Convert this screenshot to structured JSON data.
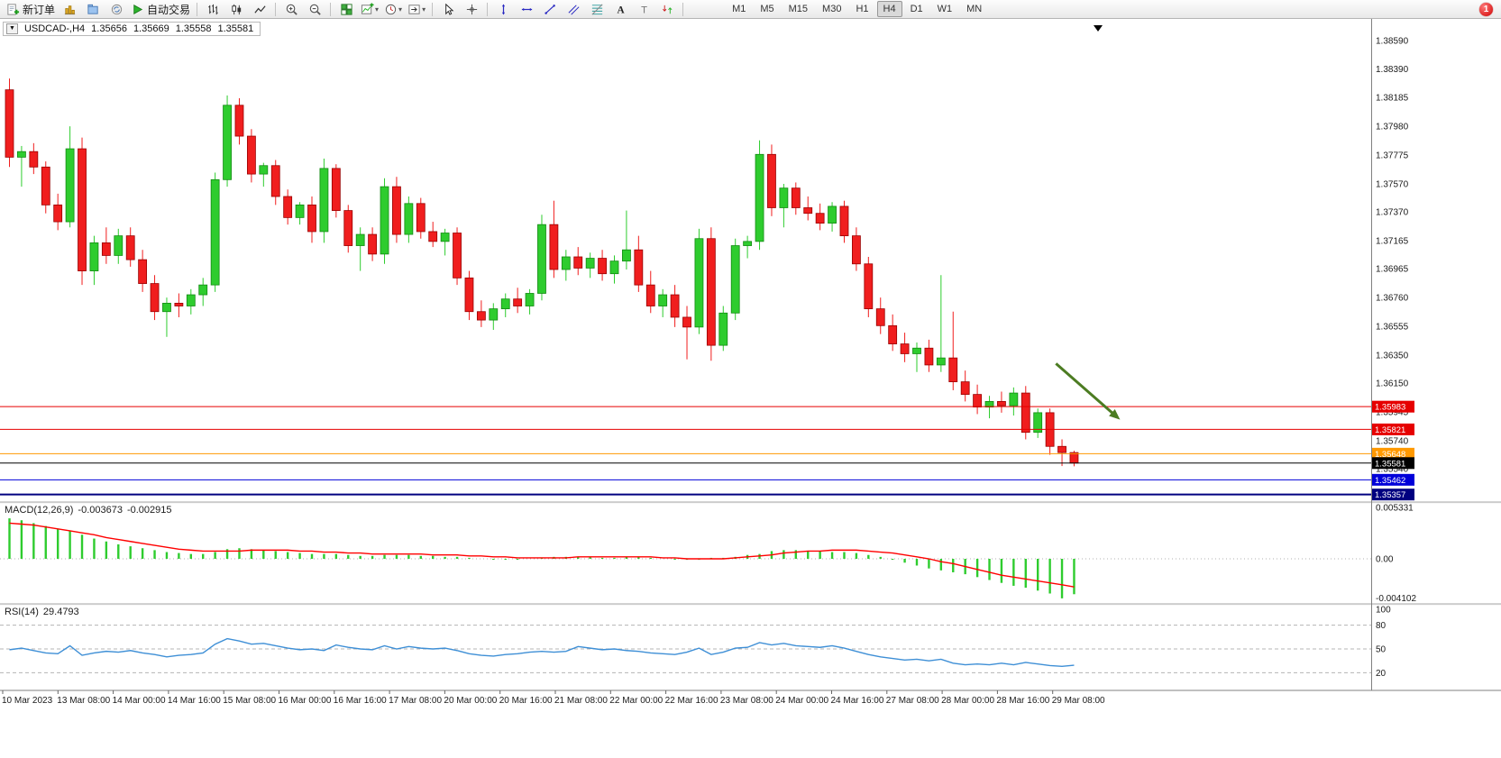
{
  "toolbar": {
    "buttons": [
      {
        "name": "new-order",
        "icon": "new-order",
        "label": "新订单"
      },
      {
        "name": "new-chart",
        "icon": "new-chart"
      },
      {
        "name": "profiles",
        "icon": "profiles"
      },
      {
        "name": "refresh",
        "icon": "terminal"
      },
      {
        "name": "auto-trading",
        "icon": "autotrade-play",
        "label": "自动交易"
      },
      {
        "sep": true
      },
      {
        "name": "bar-chart-mode",
        "icon": "bars-chart"
      },
      {
        "name": "candlestick-mode",
        "icon": "candles-chart"
      },
      {
        "name": "line-chart-mode",
        "icon": "line-chart"
      },
      {
        "sep": true
      },
      {
        "name": "zoom-in",
        "icon": "zoom-in"
      },
      {
        "name": "zoom-out",
        "icon": "zoom-out"
      },
      {
        "sep": true
      },
      {
        "name": "tile-windows",
        "icon": "tile-windows"
      },
      {
        "name": "indicators",
        "icon": "indicator-list",
        "caret": true
      },
      {
        "name": "periods",
        "icon": "clock",
        "caret": true
      },
      {
        "name": "templates",
        "icon": "chart-shift",
        "caret": true
      },
      {
        "sep": true
      },
      {
        "name": "cursor",
        "icon": "cursor"
      },
      {
        "name": "crosshair",
        "icon": "crosshair"
      },
      {
        "sep": true
      },
      {
        "name": "vertical-line",
        "icon": "vline"
      },
      {
        "name": "horizontal-line",
        "icon": "hline"
      },
      {
        "name": "trendline",
        "icon": "trendline"
      },
      {
        "name": "equidistant-channel",
        "icon": "channel"
      },
      {
        "name": "fibonacci",
        "icon": "fibonacci"
      },
      {
        "name": "text",
        "icon": "text"
      },
      {
        "name": "text-label",
        "icon": "text-label"
      },
      {
        "name": "arrows",
        "icon": "arrows"
      },
      {
        "sep": true
      }
    ],
    "timeframes": [
      "M1",
      "M5",
      "M15",
      "M30",
      "H1",
      "H4",
      "D1",
      "W1",
      "MN"
    ],
    "active_timeframe": "H4",
    "notification": "1"
  },
  "chart_header": {
    "collapse_icon": "▼",
    "symbol_period": "USDCAD-,H4",
    "open": "1.35656",
    "high": "1.35669",
    "low": "1.35558",
    "close": "1.35581"
  },
  "chart_data": {
    "type": "candlestick",
    "symbol": "USDCAD-",
    "timeframe": "H4",
    "grid": false,
    "price_range": [
      1.3531,
      1.387
    ],
    "up_color": "#2ecc2e",
    "up_border": "#128a12",
    "down_color": "#f01e1e",
    "down_border": "#990000",
    "price_ticks": [
      "1.38590",
      "1.38390",
      "1.38185",
      "1.37980",
      "1.37775",
      "1.37570",
      "1.37370",
      "1.37165",
      "1.36965",
      "1.36760",
      "1.36555",
      "1.36350",
      "1.36150",
      "1.35945",
      "1.35740",
      "1.35540"
    ],
    "time_labels": [
      "10 Mar 2023",
      "13 Mar 08:00",
      "14 Mar 00:00",
      "14 Mar 16:00",
      "15 Mar 08:00",
      "16 Mar 00:00",
      "16 Mar 16:00",
      "17 Mar 08:00",
      "20 Mar 00:00",
      "20 Mar 16:00",
      "21 Mar 08:00",
      "22 Mar 00:00",
      "22 Mar 16:00",
      "23 Mar 08:00",
      "24 Mar 00:00",
      "24 Mar 16:00",
      "27 Mar 08:00",
      "28 Mar 00:00",
      "28 Mar 16:00",
      "29 Mar 08:00"
    ],
    "hlines": [
      {
        "price": 1.35983,
        "color": "#e60000",
        "label": "1.35983",
        "width": 1
      },
      {
        "price": 1.35821,
        "color": "#e60000",
        "label": "1.35821",
        "width": 1
      },
      {
        "price": 1.35648,
        "color": "#ff9900",
        "label": "1.35648",
        "width": 1
      },
      {
        "price": 1.35581,
        "color": "#000000",
        "label": "1.35581",
        "width": 1
      },
      {
        "price": 1.35462,
        "color": "#0000d9",
        "label": "1.35462",
        "width": 1
      },
      {
        "price": 1.35357,
        "color": "#000080",
        "label": "1.35357",
        "width": 2
      }
    ],
    "annotations": [
      {
        "type": "arrow",
        "from_index": 86.5,
        "from_price": 1.3629,
        "to_index": 91.8,
        "to_price": 1.3589,
        "color": "#4c7c22"
      }
    ],
    "candles": [
      [
        1.3824,
        1.3832,
        1.3769,
        1.3776
      ],
      [
        1.3776,
        1.3784,
        1.3755,
        1.378
      ],
      [
        1.378,
        1.3786,
        1.3764,
        1.3769
      ],
      [
        1.3769,
        1.3773,
        1.3736,
        1.3742
      ],
      [
        1.3742,
        1.375,
        1.3724,
        1.373
      ],
      [
        1.373,
        1.3798,
        1.3726,
        1.3782
      ],
      [
        1.3782,
        1.379,
        1.3685,
        1.3695
      ],
      [
        1.3695,
        1.372,
        1.3685,
        1.3715
      ],
      [
        1.3715,
        1.3726,
        1.37,
        1.3706
      ],
      [
        1.3706,
        1.3725,
        1.37,
        1.372
      ],
      [
        1.372,
        1.3726,
        1.3698,
        1.3703
      ],
      [
        1.3703,
        1.371,
        1.368,
        1.3686
      ],
      [
        1.3686,
        1.3692,
        1.366,
        1.3666
      ],
      [
        1.3666,
        1.3676,
        1.3648,
        1.3672
      ],
      [
        1.3672,
        1.3679,
        1.3662,
        1.367
      ],
      [
        1.367,
        1.3682,
        1.3664,
        1.3678
      ],
      [
        1.3678,
        1.369,
        1.367,
        1.3685
      ],
      [
        1.3685,
        1.3765,
        1.368,
        1.376
      ],
      [
        1.376,
        1.382,
        1.3755,
        1.3813
      ],
      [
        1.3813,
        1.3818,
        1.3785,
        1.3791
      ],
      [
        1.3791,
        1.3796,
        1.3758,
        1.3764
      ],
      [
        1.3764,
        1.3772,
        1.3755,
        1.377
      ],
      [
        1.377,
        1.3774,
        1.3742,
        1.3748
      ],
      [
        1.3748,
        1.3753,
        1.3728,
        1.3733
      ],
      [
        1.3733,
        1.3744,
        1.3728,
        1.3742
      ],
      [
        1.3742,
        1.3748,
        1.3715,
        1.3723
      ],
      [
        1.3723,
        1.3775,
        1.3715,
        1.3768
      ],
      [
        1.3768,
        1.3771,
        1.3733,
        1.3738
      ],
      [
        1.3738,
        1.3742,
        1.3708,
        1.3713
      ],
      [
        1.3713,
        1.3726,
        1.3695,
        1.3721
      ],
      [
        1.3721,
        1.3726,
        1.3702,
        1.3707
      ],
      [
        1.3707,
        1.3761,
        1.37,
        1.3755
      ],
      [
        1.3755,
        1.3762,
        1.3715,
        1.3721
      ],
      [
        1.3721,
        1.3748,
        1.3715,
        1.3743
      ],
      [
        1.3743,
        1.3747,
        1.3718,
        1.3723
      ],
      [
        1.3723,
        1.373,
        1.3712,
        1.3716
      ],
      [
        1.3716,
        1.3725,
        1.3706,
        1.3722
      ],
      [
        1.3722,
        1.3726,
        1.3685,
        1.369
      ],
      [
        1.369,
        1.3695,
        1.366,
        1.3666
      ],
      [
        1.3666,
        1.3674,
        1.3655,
        1.366
      ],
      [
        1.366,
        1.3672,
        1.3653,
        1.3668
      ],
      [
        1.3668,
        1.3679,
        1.3662,
        1.3675
      ],
      [
        1.3675,
        1.3683,
        1.3665,
        1.367
      ],
      [
        1.367,
        1.3682,
        1.3664,
        1.3679
      ],
      [
        1.3679,
        1.3735,
        1.3674,
        1.3728
      ],
      [
        1.3728,
        1.3745,
        1.369,
        1.3696
      ],
      [
        1.3696,
        1.371,
        1.3688,
        1.3705
      ],
      [
        1.3705,
        1.3712,
        1.3692,
        1.3697
      ],
      [
        1.3697,
        1.3708,
        1.369,
        1.3704
      ],
      [
        1.3704,
        1.371,
        1.3688,
        1.3693
      ],
      [
        1.3693,
        1.3706,
        1.3686,
        1.3702
      ],
      [
        1.3702,
        1.3738,
        1.3696,
        1.371
      ],
      [
        1.371,
        1.372,
        1.368,
        1.3685
      ],
      [
        1.3685,
        1.3695,
        1.3665,
        1.367
      ],
      [
        1.367,
        1.3682,
        1.3662,
        1.3678
      ],
      [
        1.3678,
        1.3685,
        1.3655,
        1.3662
      ],
      [
        1.3662,
        1.367,
        1.3632,
        1.3655
      ],
      [
        1.3655,
        1.3725,
        1.365,
        1.3718
      ],
      [
        1.3718,
        1.3726,
        1.3631,
        1.3642
      ],
      [
        1.3642,
        1.367,
        1.3638,
        1.3665
      ],
      [
        1.3665,
        1.3718,
        1.366,
        1.3713
      ],
      [
        1.3713,
        1.372,
        1.3704,
        1.3716
      ],
      [
        1.3716,
        1.3788,
        1.371,
        1.3778
      ],
      [
        1.3778,
        1.3785,
        1.3734,
        1.374
      ],
      [
        1.374,
        1.3757,
        1.3726,
        1.3754
      ],
      [
        1.3754,
        1.3758,
        1.3735,
        1.374
      ],
      [
        1.374,
        1.3748,
        1.3731,
        1.3736
      ],
      [
        1.3736,
        1.3743,
        1.3724,
        1.3729
      ],
      [
        1.3729,
        1.3744,
        1.3723,
        1.3741
      ],
      [
        1.3741,
        1.3745,
        1.3715,
        1.372
      ],
      [
        1.372,
        1.3726,
        1.3695,
        1.37
      ],
      [
        1.37,
        1.3705,
        1.3662,
        1.3668
      ],
      [
        1.3668,
        1.3676,
        1.365,
        1.3656
      ],
      [
        1.3656,
        1.3664,
        1.3638,
        1.3643
      ],
      [
        1.3643,
        1.3651,
        1.363,
        1.3636
      ],
      [
        1.3636,
        1.3644,
        1.3623,
        1.364
      ],
      [
        1.364,
        1.3646,
        1.3623,
        1.3628
      ],
      [
        1.3628,
        1.3692,
        1.3623,
        1.3633
      ],
      [
        1.3633,
        1.3666,
        1.361,
        1.3616
      ],
      [
        1.3616,
        1.3624,
        1.3602,
        1.3607
      ],
      [
        1.3607,
        1.3614,
        1.3593,
        1.3598
      ],
      [
        1.3598,
        1.3606,
        1.359,
        1.3602
      ],
      [
        1.3602,
        1.3609,
        1.3594,
        1.3599
      ],
      [
        1.3599,
        1.3612,
        1.3592,
        1.3608
      ],
      [
        1.3608,
        1.3613,
        1.3575,
        1.358
      ],
      [
        1.358,
        1.3597,
        1.3576,
        1.3594
      ],
      [
        1.3594,
        1.3597,
        1.3564,
        1.357
      ],
      [
        1.357,
        1.3575,
        1.3556,
        1.35656
      ],
      [
        1.35656,
        1.35669,
        1.35558,
        1.35581
      ]
    ],
    "macd": {
      "label": "MACD(12,26,9)",
      "value_main": "-0.003673",
      "value_signal": "-0.002915",
      "axis": [
        "0.005331",
        "0.00",
        "-0.004102"
      ],
      "range": [
        -0.00449,
        0.0058
      ],
      "colors": {
        "histogram": "#2ecc2e",
        "signal": "#ff0000"
      },
      "histogram": [
        0.0042,
        0.004,
        0.0037,
        0.0034,
        0.0031,
        0.0029,
        0.0025,
        0.0021,
        0.0018,
        0.0015,
        0.0013,
        0.0011,
        0.0009,
        0.0007,
        0.0006,
        0.0005,
        0.0005,
        0.0007,
        0.001,
        0.0011,
        0.001,
        0.0009,
        0.0008,
        0.0007,
        0.0006,
        0.0005,
        0.0005,
        0.0005,
        0.0004,
        0.0003,
        0.0003,
        0.0004,
        0.0004,
        0.0004,
        0.0003,
        0.0003,
        0.0002,
        0.0002,
        0.0001,
        0.0,
        -0.0001,
        -0.0001,
        -0.0001,
        0.0,
        0.0001,
        0.0002,
        0.0002,
        0.0002,
        0.0002,
        0.0001,
        0.0001,
        0.0002,
        0.0002,
        0.0001,
        0.0,
        -0.0001,
        -0.0001,
        -0.0001,
        0.0001,
        0.0001,
        0.0002,
        0.0004,
        0.0005,
        0.0008,
        0.0009,
        0.0009,
        0.0008,
        0.0008,
        0.0007,
        0.0007,
        0.0006,
        0.0004,
        0.0002,
        -0.0001,
        -0.0004,
        -0.0007,
        -0.001,
        -0.0012,
        -0.0014,
        -0.0016,
        -0.0019,
        -0.0022,
        -0.0025,
        -0.0028,
        -0.003,
        -0.0033,
        -0.0036,
        -0.004102,
        -0.003673
      ],
      "signal": [
        0.0037,
        0.0036,
        0.0035,
        0.0033,
        0.0031,
        0.0029,
        0.0027,
        0.0025,
        0.0022,
        0.002,
        0.0018,
        0.0016,
        0.0014,
        0.0012,
        0.001,
        0.0009,
        0.0008,
        0.0008,
        0.0008,
        0.0008,
        0.0009,
        0.0009,
        0.0009,
        0.0009,
        0.0008,
        0.0008,
        0.0007,
        0.0007,
        0.0006,
        0.0006,
        0.0005,
        0.0005,
        0.0005,
        0.0005,
        0.0005,
        0.0004,
        0.0004,
        0.0004,
        0.0003,
        0.0003,
        0.0002,
        0.0002,
        0.0001,
        0.0001,
        0.0001,
        0.0001,
        0.0001,
        0.0002,
        0.0002,
        0.0002,
        0.0002,
        0.0002,
        0.0002,
        0.0002,
        0.0001,
        0.0001,
        0.0,
        0.0,
        0.0,
        0.0,
        0.0001,
        0.0002,
        0.0003,
        0.0004,
        0.0006,
        0.0007,
        0.0008,
        0.0008,
        0.0009,
        0.0009,
        0.0009,
        0.0008,
        0.0007,
        0.0006,
        0.0004,
        0.0002,
        0.0,
        -0.0003,
        -0.0005,
        -0.0008,
        -0.0011,
        -0.0014,
        -0.0017,
        -0.0019,
        -0.0021,
        -0.0023,
        -0.0025,
        -0.0027,
        -0.002915
      ]
    },
    "rsi": {
      "label": "RSI(14)",
      "value": "29.4793",
      "levels": [
        80,
        50,
        20
      ],
      "axis_labels": [
        "100",
        "80",
        "50",
        "20"
      ],
      "range": [
        0,
        100
      ],
      "color": "#3e8fd6",
      "values": [
        49,
        51,
        48,
        45,
        44,
        54,
        42,
        45,
        47,
        46,
        48,
        45,
        43,
        40,
        42,
        43,
        45,
        56,
        63,
        60,
        56,
        57,
        54,
        51,
        49,
        50,
        48,
        55,
        52,
        50,
        49,
        54,
        50,
        53,
        51,
        50,
        51,
        48,
        44,
        42,
        41,
        43,
        44,
        46,
        47,
        46,
        47,
        53,
        51,
        49,
        50,
        48,
        47,
        45,
        44,
        43,
        46,
        51,
        43,
        46,
        51,
        52,
        58,
        55,
        57,
        54,
        53,
        52,
        54,
        51,
        47,
        43,
        40,
        38,
        36,
        37,
        35,
        37,
        32,
        30,
        31,
        30,
        32,
        30,
        33,
        31,
        29,
        28,
        29.4793
      ]
    }
  }
}
